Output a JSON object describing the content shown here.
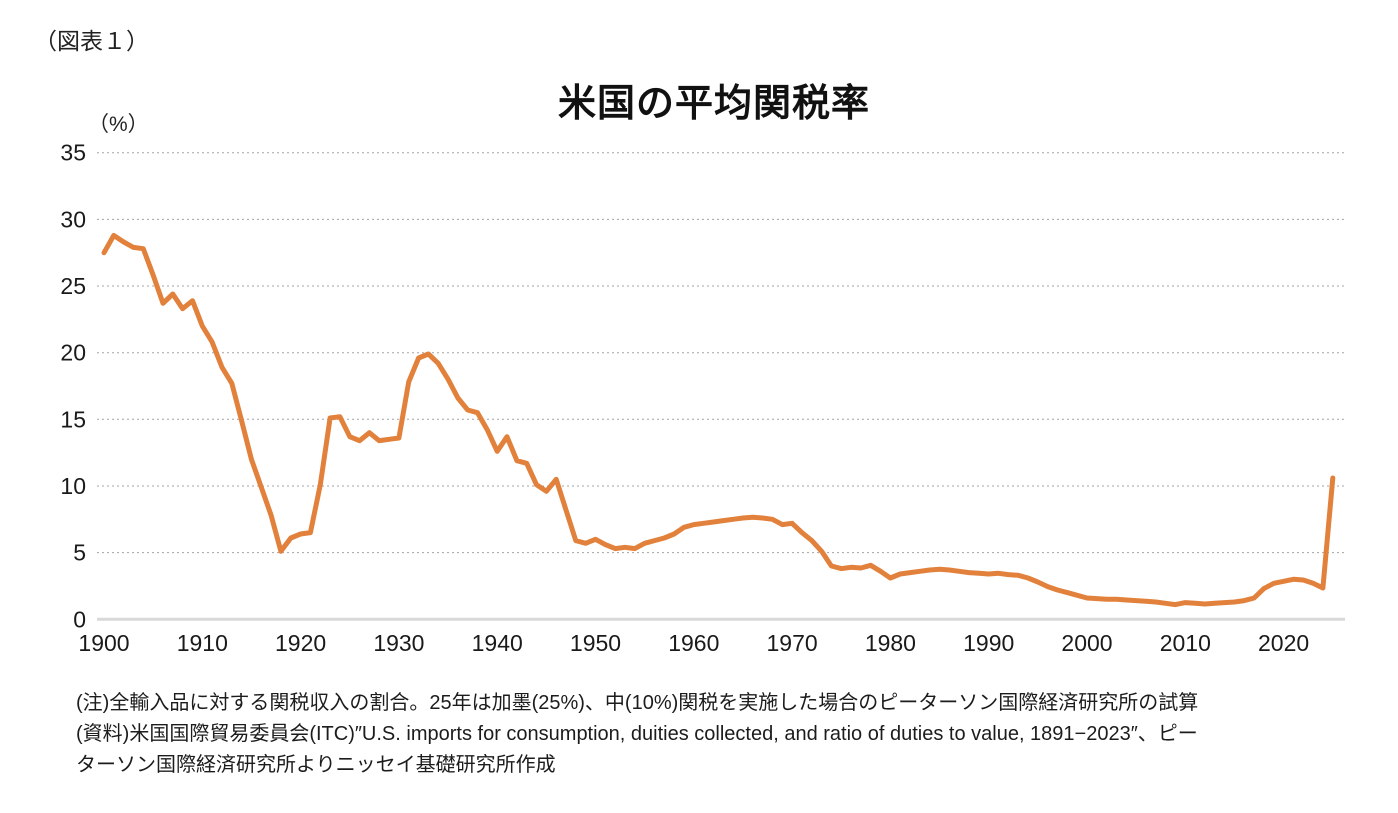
{
  "figure_label": "（図表１）",
  "chart": {
    "title": "米国の平均関税率",
    "unit_label": "（%）"
  },
  "notes": {
    "line1": "(注)全輸入品に対する関税収入の割合。25年は加墨(25%)、中(10%)関税を実施した場合のピーターソン国際経済研究所の試算",
    "line2": "(資料)米国国際貿易委員会(ITC)″U.S. imports for consumption, duities collected, and ratio of duties to value, 1891−2023″、ピー",
    "line3": "ターソン国際経済研究所よりニッセイ基礎研究所作成"
  },
  "chart_data": {
    "type": "line",
    "title": "米国の平均関税率",
    "xlabel": "",
    "ylabel": "(%)",
    "ylim": [
      0,
      35
    ],
    "y_ticks": [
      0,
      5,
      10,
      15,
      20,
      25,
      30,
      35
    ],
    "x_tick_years": [
      1900,
      1910,
      1920,
      1930,
      1940,
      1950,
      1960,
      1970,
      1980,
      1990,
      2000,
      2010,
      2020
    ],
    "x_start": 1900,
    "x_end": 2025,
    "x_step": 1,
    "grid": "dotted-horizontal",
    "legend": "none",
    "line_color": "#E2813C",
    "axis_color": "#D9D9D9",
    "gridline_color": "#A3A3A3",
    "values": [
      27.5,
      28.8,
      28.3,
      27.9,
      27.8,
      25.8,
      23.7,
      24.4,
      23.3,
      23.9,
      22.0,
      20.8,
      18.9,
      17.7,
      14.9,
      12.0,
      9.9,
      7.8,
      5.1,
      6.1,
      6.4,
      6.5,
      10.1,
      15.1,
      15.2,
      13.7,
      13.4,
      14.0,
      13.4,
      13.5,
      13.6,
      17.8,
      19.6,
      19.9,
      19.2,
      18.0,
      16.6,
      15.7,
      15.5,
      14.2,
      12.6,
      13.7,
      11.9,
      11.7,
      10.1,
      9.6,
      10.5,
      8.2,
      5.9,
      5.7,
      6.0,
      5.6,
      5.3,
      5.4,
      5.3,
      5.7,
      5.9,
      6.1,
      6.4,
      6.9,
      7.1,
      7.2,
      7.3,
      7.4,
      7.5,
      7.6,
      7.65,
      7.6,
      7.5,
      7.1,
      7.2,
      6.5,
      5.9,
      5.1,
      4.0,
      3.8,
      3.9,
      3.85,
      4.05,
      3.6,
      3.1,
      3.4,
      3.5,
      3.6,
      3.7,
      3.75,
      3.7,
      3.6,
      3.5,
      3.45,
      3.4,
      3.45,
      3.35,
      3.3,
      3.1,
      2.8,
      2.45,
      2.2,
      2.0,
      1.8,
      1.6,
      1.55,
      1.5,
      1.5,
      1.45,
      1.4,
      1.35,
      1.3,
      1.2,
      1.1,
      1.25,
      1.2,
      1.15,
      1.2,
      1.25,
      1.3,
      1.4,
      1.6,
      2.3,
      2.7,
      2.85,
      3.0,
      2.95,
      2.7,
      2.35,
      10.6
    ]
  }
}
